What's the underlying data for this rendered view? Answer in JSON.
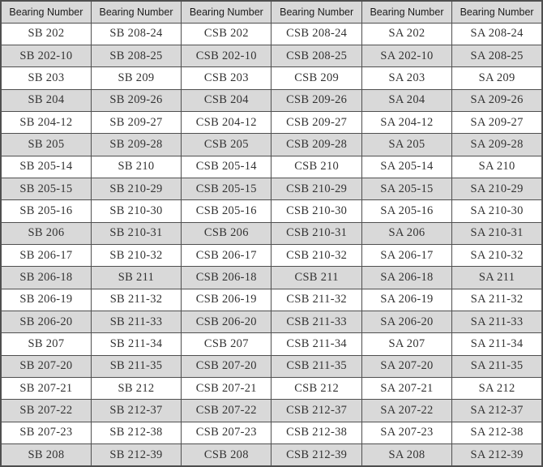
{
  "colors": {
    "header_bg": "#d9d9d9",
    "band_bg": "#d9d9d9",
    "border": "#4f4f4f",
    "header_text": "#1c1c1c",
    "cell_text": "#333333"
  },
  "table": {
    "columns": [
      "Bearing Number",
      "Bearing Number",
      "Bearing Number",
      "Bearing Number",
      "Bearing Number",
      "Bearing Number"
    ],
    "rows": [
      [
        "SB 202",
        "SB 208-24",
        "CSB 202",
        "CSB 208-24",
        "SA 202",
        "SA 208-24"
      ],
      [
        "SB 202-10",
        "SB 208-25",
        "CSB 202-10",
        "CSB 208-25",
        "SA 202-10",
        "SA 208-25"
      ],
      [
        "SB 203",
        "SB 209",
        "CSB 203",
        "CSB 209",
        "SA 203",
        "SA 209"
      ],
      [
        "SB 204",
        "SB 209-26",
        "CSB 204",
        "CSB 209-26",
        "SA 204",
        "SA 209-26"
      ],
      [
        "SB 204-12",
        "SB 209-27",
        "CSB 204-12",
        "CSB 209-27",
        "SA 204-12",
        "SA 209-27"
      ],
      [
        "SB 205",
        "SB 209-28",
        "CSB 205",
        "CSB 209-28",
        "SA 205",
        "SA 209-28"
      ],
      [
        "SB 205-14",
        "SB 210",
        "CSB 205-14",
        "CSB 210",
        "SA 205-14",
        "SA 210"
      ],
      [
        "SB 205-15",
        "SB 210-29",
        "CSB 205-15",
        "CSB 210-29",
        "SA 205-15",
        "SA 210-29"
      ],
      [
        "SB 205-16",
        "SB 210-30",
        "CSB 205-16",
        "CSB 210-30",
        "SA 205-16",
        "SA 210-30"
      ],
      [
        "SB 206",
        "SB 210-31",
        "CSB 206",
        "CSB 210-31",
        "SA 206",
        "SA 210-31"
      ],
      [
        "SB 206-17",
        "SB 210-32",
        "CSB 206-17",
        "CSB 210-32",
        "SA 206-17",
        "SA 210-32"
      ],
      [
        "SB 206-18",
        "SB 211",
        "CSB 206-18",
        "CSB 211",
        "SA 206-18",
        "SA 211"
      ],
      [
        "SB 206-19",
        "SB 211-32",
        "CSB 206-19",
        "CSB 211-32",
        "SA 206-19",
        "SA 211-32"
      ],
      [
        "SB 206-20",
        "SB 211-33",
        "CSB 206-20",
        "CSB 211-33",
        "SA 206-20",
        "SA 211-33"
      ],
      [
        "SB 207",
        "SB 211-34",
        "CSB 207",
        "CSB 211-34",
        "SA 207",
        "SA 211-34"
      ],
      [
        "SB 207-20",
        "SB 211-35",
        "CSB 207-20",
        "CSB 211-35",
        "SA 207-20",
        "SA 211-35"
      ],
      [
        "SB 207-21",
        "SB 212",
        "CSB 207-21",
        "CSB 212",
        "SA 207-21",
        "SA 212"
      ],
      [
        "SB 207-22",
        "SB 212-37",
        "CSB 207-22",
        "CSB 212-37",
        "SA 207-22",
        "SA 212-37"
      ],
      [
        "SB 207-23",
        "SB 212-38",
        "CSB 207-23",
        "CSB 212-38",
        "SA 207-23",
        "SA 212-38"
      ],
      [
        "SB 208",
        "SB 212-39",
        "CSB 208",
        "CSB 212-39",
        "SA 208",
        "SA 212-39"
      ]
    ]
  }
}
